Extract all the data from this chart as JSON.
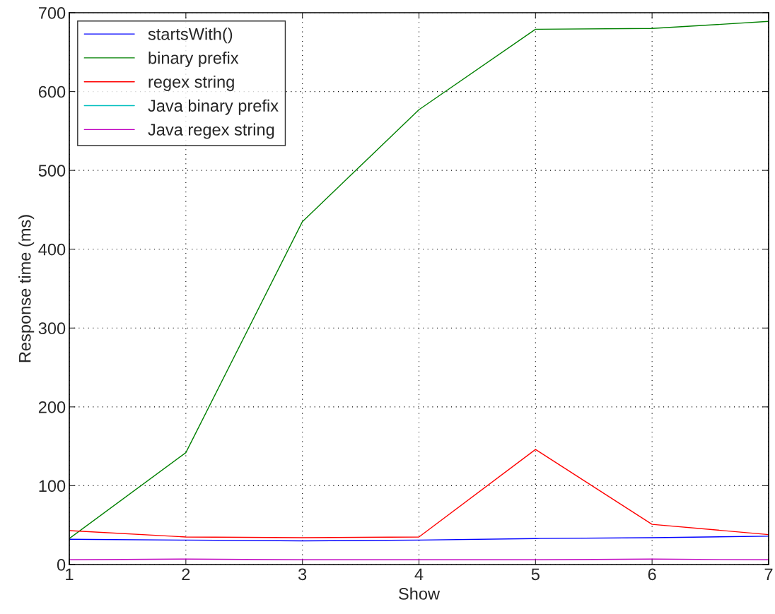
{
  "chart_data": {
    "type": "line",
    "xlabel": "Show",
    "ylabel": "Response time (ms)",
    "x": [
      1,
      2,
      3,
      4,
      5,
      6,
      7
    ],
    "series": [
      {
        "name": "startsWith()",
        "color": "#0000ff",
        "values": [
          32,
          31,
          30,
          31,
          33,
          34,
          36
        ]
      },
      {
        "name": "binary prefix",
        "color": "#008000",
        "values": [
          33,
          142,
          435,
          577,
          679,
          680,
          689
        ]
      },
      {
        "name": "regex string",
        "color": "#ff0000",
        "values": [
          43,
          35,
          34,
          35,
          146,
          51,
          38
        ]
      },
      {
        "name": "Java binary prefix",
        "color": "#00bfbf",
        "values": [
          null,
          null,
          null,
          null,
          null,
          null,
          null
        ]
      },
      {
        "name": "Java regex string",
        "color": "#bf00bf",
        "values": [
          6,
          7,
          6,
          6,
          6,
          7,
          6
        ]
      }
    ],
    "xlim": [
      1,
      7
    ],
    "xticks": [
      1,
      2,
      3,
      4,
      5,
      6,
      7
    ],
    "ylim": [
      0,
      700
    ],
    "yticks": [
      0,
      100,
      200,
      300,
      400,
      500,
      600,
      700
    ],
    "grid": true,
    "legend": "top left",
    "marker": "none",
    "line_style": "solid"
  }
}
